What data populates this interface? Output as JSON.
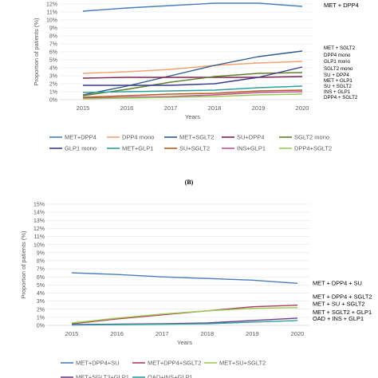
{
  "panel_b_label": "(B)",
  "chart_data": [
    {
      "type": "line",
      "xlabel": "Years",
      "ylabel": "Proportion of patients (%)",
      "ylim": [
        0,
        12
      ],
      "y_ticks": [
        "0%",
        "1%",
        "2%",
        "3%",
        "4%",
        "5%",
        "6%",
        "7%",
        "8%",
        "9%",
        "10%",
        "11%",
        "12%"
      ],
      "x": [
        "2015",
        "2016",
        "2017",
        "2018",
        "2019",
        "2020"
      ],
      "grid": true,
      "series": [
        {
          "name": "MET+DPP4",
          "color": "#4a7ebb",
          "values": [
            11.1,
            11.5,
            11.8,
            12.1,
            12.1,
            11.7
          ]
        },
        {
          "name": "DPP4 mono",
          "color": "#f2a172",
          "values": [
            3.3,
            3.5,
            3.8,
            4.3,
            4.6,
            4.8
          ]
        },
        {
          "name": "MET+SGLT2",
          "color": "#2e5a8a",
          "values": [
            0.6,
            1.7,
            3.0,
            4.3,
            5.4,
            6.1
          ]
        },
        {
          "name": "SU+DPP4",
          "color": "#7b2152",
          "values": [
            2.7,
            2.8,
            2.8,
            2.8,
            2.8,
            2.9
          ]
        },
        {
          "name": "SGLT2 mono",
          "color": "#5f7f2a",
          "values": [
            0.5,
            1.3,
            2.2,
            2.9,
            3.3,
            3.4
          ]
        },
        {
          "name": "GLP1 mono",
          "color": "#3a3a8c",
          "values": [
            1.8,
            1.8,
            1.8,
            2.0,
            2.8,
            4.1
          ]
        },
        {
          "name": "MET+GLP1",
          "color": "#2f9fa0",
          "values": [
            0.9,
            1.0,
            1.1,
            1.2,
            1.5,
            1.7
          ]
        },
        {
          "name": "SU+SGLT2",
          "color": "#b55d1f",
          "values": [
            0.3,
            0.5,
            0.7,
            0.8,
            1.1,
            1.2
          ]
        },
        {
          "name": "INS+GLP1",
          "color": "#c0509a",
          "values": [
            0.2,
            0.3,
            0.4,
            0.6,
            0.9,
            1.0
          ]
        },
        {
          "name": "DPP4+SGLT2",
          "color": "#9acb52",
          "values": [
            0.1,
            0.2,
            0.3,
            0.4,
            0.6,
            0.7
          ]
        }
      ],
      "right_labels": [
        {
          "text": "MET + DPP4",
          "value": 11.8
        },
        {
          "text": "MET + SGLT2",
          "value": 6.5
        },
        {
          "text": "DPP4 mono",
          "value": 5.6
        },
        {
          "text": "GLP1 mono",
          "value": 4.8
        },
        {
          "text": "SGLT2 mono",
          "value": 3.9
        },
        {
          "text": "SU + DPP4",
          "value": 3.1
        },
        {
          "text": "MET + GLP1",
          "value": 2.4
        },
        {
          "text": "SU + SGLT2",
          "value": 1.7
        },
        {
          "text": "INS + GLP1",
          "value": 1.0
        },
        {
          "text": "DPP4 + SGLT2",
          "value": 0.3
        }
      ]
    },
    {
      "type": "line",
      "xlabel": "Years",
      "ylabel": "Proportion of patients (%)",
      "ylim": [
        0,
        15
      ],
      "y_ticks": [
        "0%",
        "1%",
        "2%",
        "3%",
        "4%",
        "5%",
        "6%",
        "7%",
        "8%",
        "9%",
        "10%",
        "11%",
        "12%",
        "13%",
        "14%",
        "15%"
      ],
      "x": [
        "2015",
        "2016",
        "2017",
        "2018",
        "2019",
        "2020"
      ],
      "grid": true,
      "series": [
        {
          "name": "MET+DPP4+SU",
          "color": "#4a7ebb",
          "values": [
            6.5,
            6.3,
            6.0,
            5.8,
            5.6,
            5.2
          ]
        },
        {
          "name": "MET+DPP4+SGLT2",
          "color": "#b03a5b",
          "values": [
            0.2,
            0.8,
            1.3,
            1.8,
            2.3,
            2.5
          ]
        },
        {
          "name": "MET+SU+SGLT2",
          "color": "#9acb52",
          "values": [
            0.3,
            0.9,
            1.4,
            1.8,
            2.1,
            2.2
          ]
        },
        {
          "name": "MET+SGLT2+GLP1",
          "color": "#6a3f8c",
          "values": [
            0.1,
            0.15,
            0.2,
            0.3,
            0.6,
            0.9
          ]
        },
        {
          "name": "OAD+INS+GLP1",
          "color": "#2f9fa0",
          "values": [
            0.05,
            0.1,
            0.15,
            0.2,
            0.4,
            0.6
          ]
        }
      ],
      "legend_names": [
        "MET+DPP4+SU",
        "MET+DPP4+SGLT2",
        "MET+SU+SGLT2",
        "MET+SGLT2+GLP1",
        "OAD+INS+GLP1"
      ],
      "right_labels": [
        {
          "text": "MET + DPP4 + SU",
          "value": 5.2
        },
        {
          "text": "MET + DPP4 + SGLT2",
          "value": 3.5
        },
        {
          "text": "MET + SU + SGLT2",
          "value": 2.6
        },
        {
          "text": "MET + SGLT2 + GLP1",
          "value": 1.6
        },
        {
          "text": "OAD + INS + GLP1",
          "value": 0.8
        }
      ]
    }
  ]
}
